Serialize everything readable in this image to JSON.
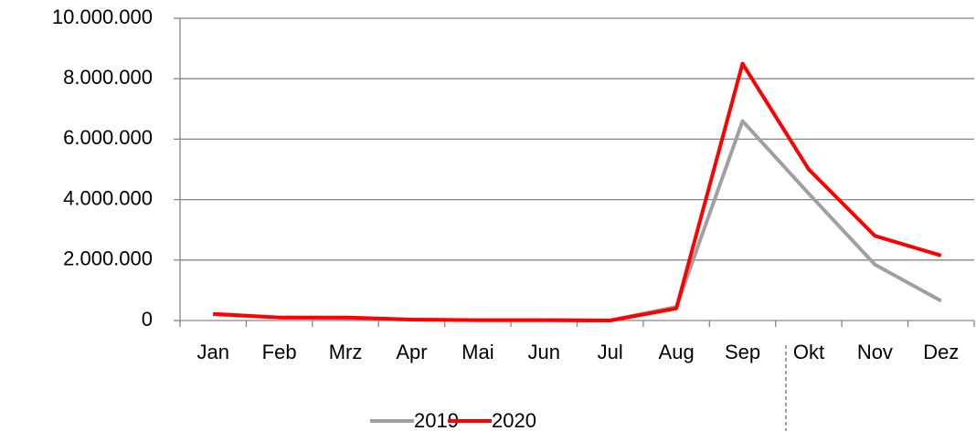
{
  "chart_data": {
    "type": "line",
    "categories": [
      "Jan",
      "Feb",
      "Mrz",
      "Apr",
      "Mai",
      "Jun",
      "Jul",
      "Aug",
      "Sep",
      "Okt",
      "Nov",
      "Dez"
    ],
    "series": [
      {
        "name": "2019",
        "color": "#a0a0a0",
        "values": [
          200000,
          100000,
          80000,
          30000,
          10000,
          10000,
          5000,
          450000,
          6600000,
          4200000,
          1850000,
          650000
        ]
      },
      {
        "name": "2020",
        "color": "#ff0000",
        "values": [
          220000,
          100000,
          100000,
          30000,
          10000,
          10000,
          0,
          400000,
          8500000,
          5000000,
          2800000,
          2150000
        ]
      }
    ],
    "ylim": [
      0,
      10000000
    ],
    "yticks": [
      0,
      {
        "value": 2000000,
        "label": "2.000.000"
      },
      {
        "value": 4000000,
        "label": "4.000.000"
      },
      {
        "value": 6000000,
        "label": "6.000.000"
      },
      {
        "value": 8000000,
        "label": "8.000.000"
      },
      {
        "value": 10000000,
        "label": "10.000.000"
      }
    ],
    "grid": true,
    "legend": "bottom"
  }
}
